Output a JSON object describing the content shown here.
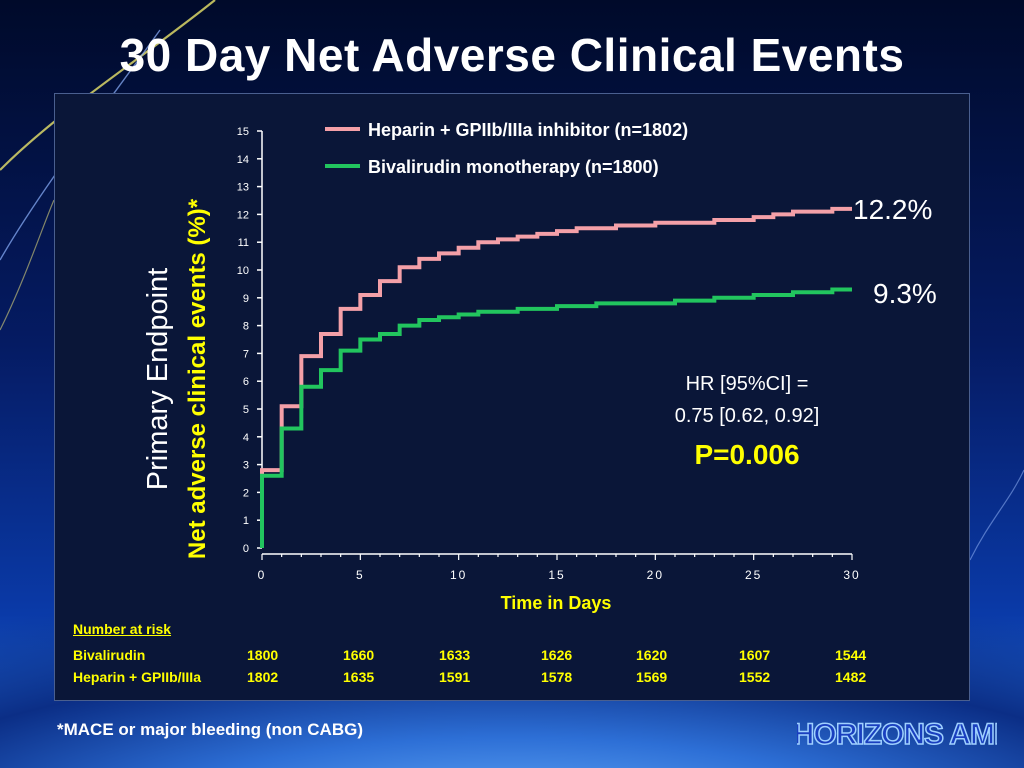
{
  "slide": {
    "title": "30 Day Net Adverse Clinical Events",
    "footnote": "*MACE or major bleeding (non CABG)",
    "logo_text": "HORIZONS AMI",
    "colors": {
      "title": "#ffffff",
      "accent_yellow": "#ffff00",
      "panel_bg": "#0a1638"
    }
  },
  "chart_data": {
    "type": "line",
    "step": true,
    "title": "",
    "ylabel_primary": "Primary Endpoint",
    "ylabel_secondary": "Net adverse clinical events (%)*",
    "xlabel": "Time in Days",
    "xlim": [
      0,
      30
    ],
    "ylim": [
      0,
      15
    ],
    "x_ticks": [
      "0",
      "5",
      "10",
      "15",
      "20",
      "25",
      "30"
    ],
    "y_ticks": [
      "0",
      "1",
      "2",
      "3",
      "4",
      "5",
      "6",
      "7",
      "8",
      "9",
      "10",
      "11",
      "12",
      "13",
      "14",
      "15"
    ],
    "legend_position": "top",
    "series": [
      {
        "name": "Heparin + GPIIb/IIIa inhibitor (n=1802)",
        "color": "#f4a0a8",
        "end_label": "12.2%",
        "x": [
          0,
          0,
          1,
          2,
          3,
          4,
          5,
          6,
          7,
          8,
          9,
          10,
          11,
          12,
          13,
          14,
          15,
          16,
          17,
          18,
          19,
          20,
          21,
          22,
          23,
          24,
          25,
          26,
          27,
          28,
          29,
          30
        ],
        "values": [
          0,
          2.8,
          5.1,
          6.9,
          7.7,
          8.6,
          9.1,
          9.6,
          10.1,
          10.4,
          10.6,
          10.8,
          11.0,
          11.1,
          11.2,
          11.3,
          11.4,
          11.5,
          11.5,
          11.6,
          11.6,
          11.7,
          11.7,
          11.7,
          11.8,
          11.8,
          11.9,
          12.0,
          12.1,
          12.1,
          12.2,
          12.2
        ]
      },
      {
        "name": "Bivalirudin monotherapy (n=1800)",
        "color": "#22c55e",
        "end_label": "9.3%",
        "x": [
          0,
          0,
          1,
          2,
          3,
          4,
          5,
          6,
          7,
          8,
          9,
          10,
          11,
          12,
          13,
          14,
          15,
          16,
          17,
          18,
          19,
          20,
          21,
          22,
          23,
          24,
          25,
          26,
          27,
          28,
          29,
          30
        ],
        "values": [
          0,
          2.6,
          4.3,
          5.8,
          6.4,
          7.1,
          7.5,
          7.7,
          8.0,
          8.2,
          8.3,
          8.4,
          8.5,
          8.5,
          8.6,
          8.6,
          8.7,
          8.7,
          8.8,
          8.8,
          8.8,
          8.8,
          8.9,
          8.9,
          9.0,
          9.0,
          9.1,
          9.1,
          9.2,
          9.2,
          9.3,
          9.3
        ]
      }
    ],
    "annotations": {
      "hr_line1": "HR [95%CI] =",
      "hr_line2": "0.75 [0.62, 0.92]",
      "p_value": "P=0.006"
    }
  },
  "risk_table": {
    "header": "Number at risk",
    "rows": [
      {
        "label": "Bivalirudin",
        "values": [
          "1800",
          "1660",
          "1633",
          "1626",
          "1620",
          "1607",
          "1544"
        ]
      },
      {
        "label": "Heparin + GPIIb/IIIa",
        "values": [
          "1802",
          "1635",
          "1591",
          "1578",
          "1569",
          "1552",
          "1482"
        ]
      }
    ]
  }
}
